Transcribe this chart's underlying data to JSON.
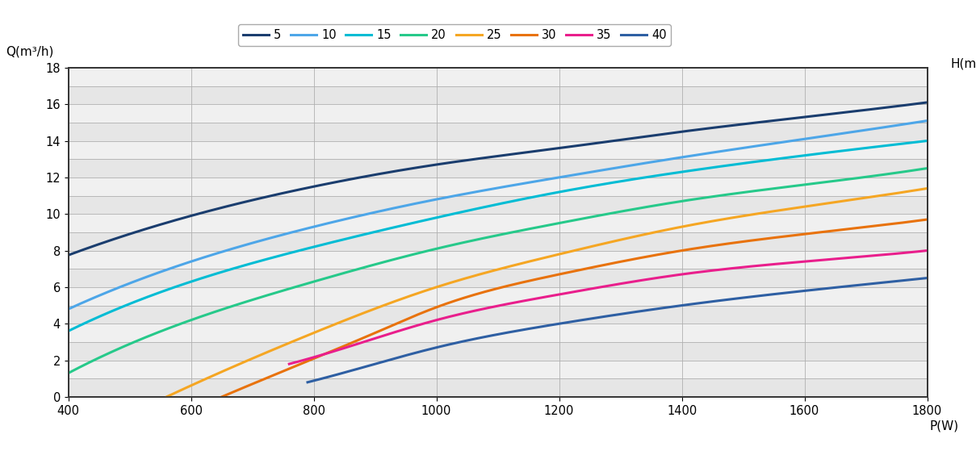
{
  "curves": [
    {
      "label": "5",
      "color": "#1a3d6e",
      "points_x": [
        400,
        600,
        800,
        1000,
        1200,
        1400,
        1600,
        1800
      ],
      "points_y": [
        7.75,
        9.9,
        11.5,
        12.7,
        13.6,
        14.5,
        15.3,
        16.1
      ]
    },
    {
      "label": "10",
      "color": "#4da6e8",
      "points_x": [
        400,
        600,
        800,
        1000,
        1200,
        1400,
        1600,
        1800
      ],
      "points_y": [
        4.8,
        7.4,
        9.3,
        10.8,
        12.0,
        13.1,
        14.1,
        15.1
      ]
    },
    {
      "label": "15",
      "color": "#00bcd4",
      "points_x": [
        400,
        600,
        800,
        1000,
        1200,
        1400,
        1600,
        1800
      ],
      "points_y": [
        3.6,
        6.3,
        8.2,
        9.8,
        11.2,
        12.3,
        13.2,
        14.0
      ]
    },
    {
      "label": "20",
      "color": "#26c98a",
      "points_x": [
        400,
        600,
        800,
        1000,
        1200,
        1400,
        1600,
        1800
      ],
      "points_y": [
        1.3,
        4.2,
        6.3,
        8.1,
        9.5,
        10.7,
        11.6,
        12.5
      ]
    },
    {
      "label": "25",
      "color": "#f5a623",
      "points_x": [
        560,
        700,
        800,
        1000,
        1200,
        1400,
        1600,
        1800
      ],
      "points_y": [
        0.0,
        2.1,
        3.5,
        6.0,
        7.8,
        9.3,
        10.4,
        11.4
      ]
    },
    {
      "label": "30",
      "color": "#e8720c",
      "points_x": [
        650,
        750,
        900,
        1000,
        1200,
        1400,
        1600,
        1800
      ],
      "points_y": [
        0.0,
        1.4,
        3.5,
        4.9,
        6.7,
        8.0,
        8.9,
        9.7
      ]
    },
    {
      "label": "35",
      "color": "#e91e8c",
      "points_x": [
        760,
        900,
        1000,
        1200,
        1400,
        1600,
        1800
      ],
      "points_y": [
        1.8,
        3.2,
        4.2,
        5.6,
        6.7,
        7.4,
        8.0
      ]
    },
    {
      "label": "40",
      "color": "#2e5fa3",
      "points_x": [
        790,
        900,
        1000,
        1200,
        1400,
        1600,
        1800
      ],
      "points_y": [
        0.8,
        1.8,
        2.7,
        4.0,
        5.0,
        5.8,
        6.5
      ]
    }
  ],
  "xlabel": "P(W)",
  "ylabel": "Q(m³/h)",
  "ylabel2": "H(m)",
  "xlim": [
    400,
    1800
  ],
  "ylim": [
    0,
    18
  ],
  "xticks": [
    400,
    600,
    800,
    1000,
    1200,
    1400,
    1600,
    1800
  ],
  "yticks": [
    0,
    2,
    4,
    6,
    8,
    10,
    12,
    14,
    16,
    18
  ],
  "background_color": "#ffffff",
  "line_width": 2.2,
  "axis_fontsize": 11,
  "legend_fontsize": 10.5,
  "band_colors": [
    "#e6e6e6",
    "#f0f0f0"
  ]
}
